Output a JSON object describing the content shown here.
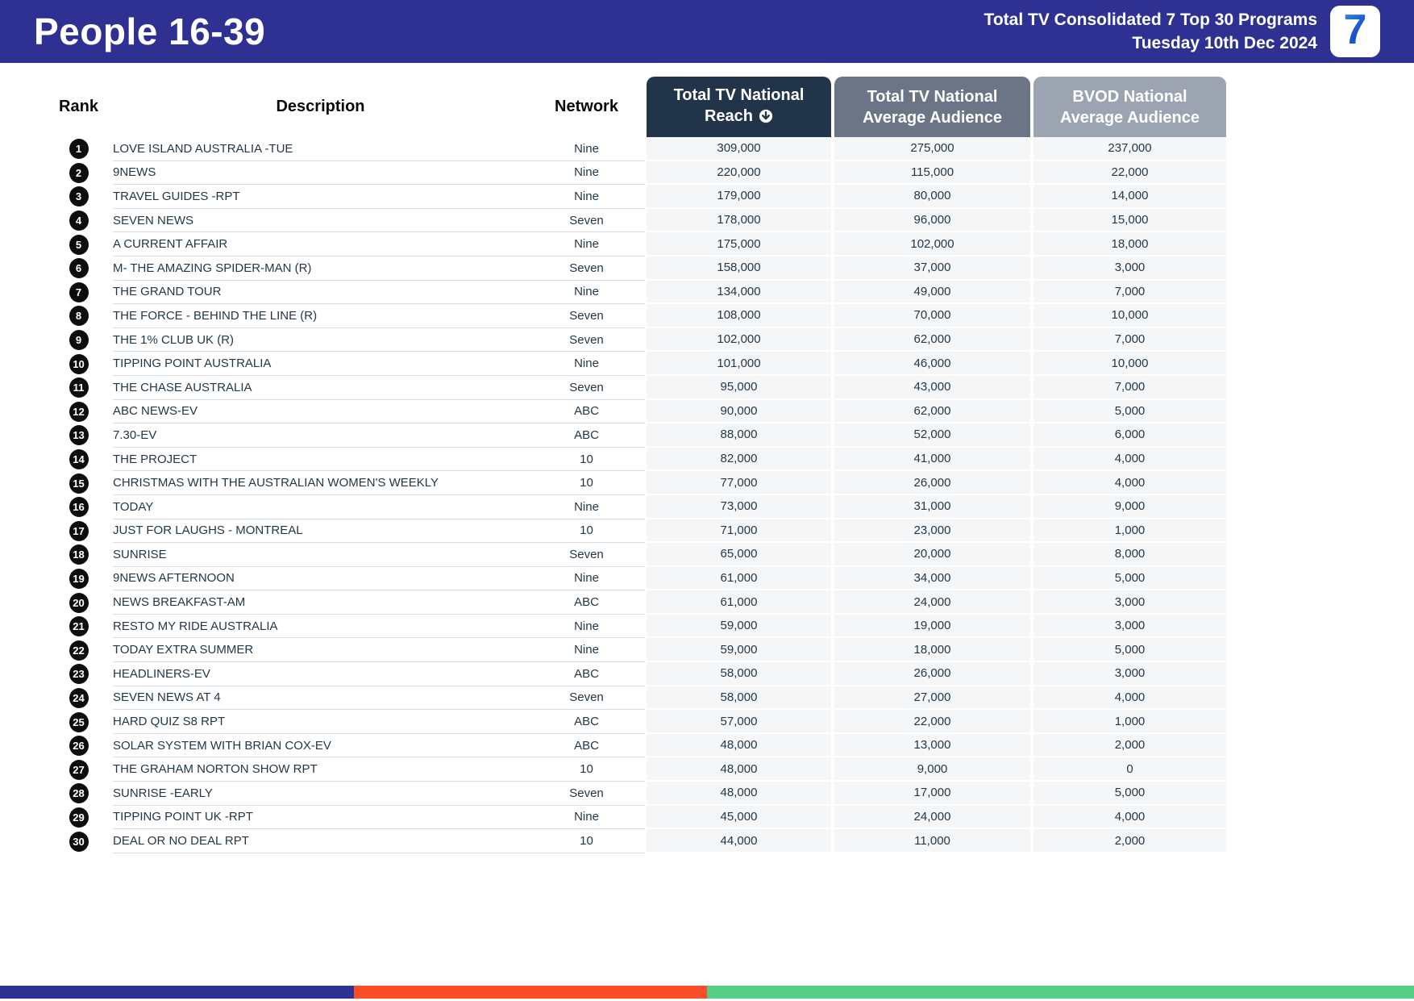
{
  "header": {
    "title": "People 16-39",
    "subtitle_line1": "Total TV Consolidated 7 Top 30 Programs",
    "subtitle_line2": "Tuesday 10th Dec 2024",
    "logo_glyph": "7"
  },
  "table": {
    "plain_columns": {
      "rank": "Rank",
      "description": "Description",
      "network": "Network"
    },
    "metric_columns": [
      {
        "line1": "Total TV National",
        "line2": "Reach",
        "sorted": true,
        "color": "#22344A"
      },
      {
        "line1": "Total TV National",
        "line2": "Average Audience",
        "sorted": false,
        "color": "#6B7586"
      },
      {
        "line1": "BVOD National",
        "line2": "Average Audience",
        "sorted": false,
        "color": "#9CA4B1"
      }
    ],
    "rows": [
      {
        "rank": "1",
        "description": "LOVE ISLAND AUSTRALIA -TUE",
        "network": "Nine",
        "reach": "309,000",
        "avg_audience": "275,000",
        "bvod_audience": "237,000"
      },
      {
        "rank": "2",
        "description": "9NEWS",
        "network": "Nine",
        "reach": "220,000",
        "avg_audience": "115,000",
        "bvod_audience": "22,000"
      },
      {
        "rank": "3",
        "description": "TRAVEL GUIDES -RPT",
        "network": "Nine",
        "reach": "179,000",
        "avg_audience": "80,000",
        "bvod_audience": "14,000"
      },
      {
        "rank": "4",
        "description": "SEVEN NEWS",
        "network": "Seven",
        "reach": "178,000",
        "avg_audience": "96,000",
        "bvod_audience": "15,000"
      },
      {
        "rank": "5",
        "description": "A CURRENT AFFAIR",
        "network": "Nine",
        "reach": "175,000",
        "avg_audience": "102,000",
        "bvod_audience": "18,000"
      },
      {
        "rank": "6",
        "description": "M- THE AMAZING SPIDER-MAN (R)",
        "network": "Seven",
        "reach": "158,000",
        "avg_audience": "37,000",
        "bvod_audience": "3,000"
      },
      {
        "rank": "7",
        "description": "THE GRAND TOUR",
        "network": "Nine",
        "reach": "134,000",
        "avg_audience": "49,000",
        "bvod_audience": "7,000"
      },
      {
        "rank": "8",
        "description": "THE FORCE - BEHIND THE LINE (R)",
        "network": "Seven",
        "reach": "108,000",
        "avg_audience": "70,000",
        "bvod_audience": "10,000"
      },
      {
        "rank": "9",
        "description": "THE 1% CLUB UK (R)",
        "network": "Seven",
        "reach": "102,000",
        "avg_audience": "62,000",
        "bvod_audience": "7,000"
      },
      {
        "rank": "10",
        "description": "TIPPING POINT AUSTRALIA",
        "network": "Nine",
        "reach": "101,000",
        "avg_audience": "46,000",
        "bvod_audience": "10,000"
      },
      {
        "rank": "11",
        "description": "THE CHASE AUSTRALIA",
        "network": "Seven",
        "reach": "95,000",
        "avg_audience": "43,000",
        "bvod_audience": "7,000"
      },
      {
        "rank": "12",
        "description": "ABC NEWS-EV",
        "network": "ABC",
        "reach": "90,000",
        "avg_audience": "62,000",
        "bvod_audience": "5,000"
      },
      {
        "rank": "13",
        "description": "7.30-EV",
        "network": "ABC",
        "reach": "88,000",
        "avg_audience": "52,000",
        "bvod_audience": "6,000"
      },
      {
        "rank": "14",
        "description": "THE PROJECT",
        "network": "10",
        "reach": "82,000",
        "avg_audience": "41,000",
        "bvod_audience": "4,000"
      },
      {
        "rank": "15",
        "description": "CHRISTMAS WITH THE AUSTRALIAN WOMEN'S WEEKLY",
        "network": "10",
        "reach": "77,000",
        "avg_audience": "26,000",
        "bvod_audience": "4,000"
      },
      {
        "rank": "16",
        "description": "TODAY",
        "network": "Nine",
        "reach": "73,000",
        "avg_audience": "31,000",
        "bvod_audience": "9,000"
      },
      {
        "rank": "17",
        "description": "JUST FOR LAUGHS - MONTREAL",
        "network": "10",
        "reach": "71,000",
        "avg_audience": "23,000",
        "bvod_audience": "1,000"
      },
      {
        "rank": "18",
        "description": "SUNRISE",
        "network": "Seven",
        "reach": "65,000",
        "avg_audience": "20,000",
        "bvod_audience": "8,000"
      },
      {
        "rank": "19",
        "description": "9NEWS AFTERNOON",
        "network": "Nine",
        "reach": "61,000",
        "avg_audience": "34,000",
        "bvod_audience": "5,000"
      },
      {
        "rank": "20",
        "description": "NEWS BREAKFAST-AM",
        "network": "ABC",
        "reach": "61,000",
        "avg_audience": "24,000",
        "bvod_audience": "3,000"
      },
      {
        "rank": "21",
        "description": "RESTO MY RIDE AUSTRALIA",
        "network": "Nine",
        "reach": "59,000",
        "avg_audience": "19,000",
        "bvod_audience": "3,000"
      },
      {
        "rank": "22",
        "description": "TODAY EXTRA SUMMER",
        "network": "Nine",
        "reach": "59,000",
        "avg_audience": "18,000",
        "bvod_audience": "5,000"
      },
      {
        "rank": "23",
        "description": "HEADLINERS-EV",
        "network": "ABC",
        "reach": "58,000",
        "avg_audience": "26,000",
        "bvod_audience": "3,000"
      },
      {
        "rank": "24",
        "description": "SEVEN NEWS AT 4",
        "network": "Seven",
        "reach": "58,000",
        "avg_audience": "27,000",
        "bvod_audience": "4,000"
      },
      {
        "rank": "25",
        "description": "HARD QUIZ S8 RPT",
        "network": "ABC",
        "reach": "57,000",
        "avg_audience": "22,000",
        "bvod_audience": "1,000"
      },
      {
        "rank": "26",
        "description": "SOLAR SYSTEM WITH BRIAN COX-EV",
        "network": "ABC",
        "reach": "48,000",
        "avg_audience": "13,000",
        "bvod_audience": "2,000"
      },
      {
        "rank": "27",
        "description": "THE GRAHAM NORTON SHOW RPT",
        "network": "10",
        "reach": "48,000",
        "avg_audience": "9,000",
        "bvod_audience": "0"
      },
      {
        "rank": "28",
        "description": "SUNRISE -EARLY",
        "network": "Seven",
        "reach": "48,000",
        "avg_audience": "17,000",
        "bvod_audience": "5,000"
      },
      {
        "rank": "29",
        "description": "TIPPING POINT UK -RPT",
        "network": "Nine",
        "reach": "45,000",
        "avg_audience": "24,000",
        "bvod_audience": "4,000"
      },
      {
        "rank": "30",
        "description": "DEAL OR NO DEAL RPT",
        "network": "10",
        "reach": "44,000",
        "avg_audience": "11,000",
        "bvod_audience": "2,000"
      }
    ]
  },
  "footer": {
    "stripes": [
      {
        "color": "#2E3192",
        "width_pct": 25
      },
      {
        "color": "#FA4F26",
        "width_pct": 25
      },
      {
        "color": "#55CF88",
        "width_pct": 50
      }
    ]
  },
  "colors": {
    "banner_blue": "#2E3192",
    "reach_header": "#22344A",
    "avg_header": "#6B7586",
    "bvod_header": "#9CA4B1",
    "row_text": "#243746",
    "metric_column_bg": "#F5F6F7"
  }
}
